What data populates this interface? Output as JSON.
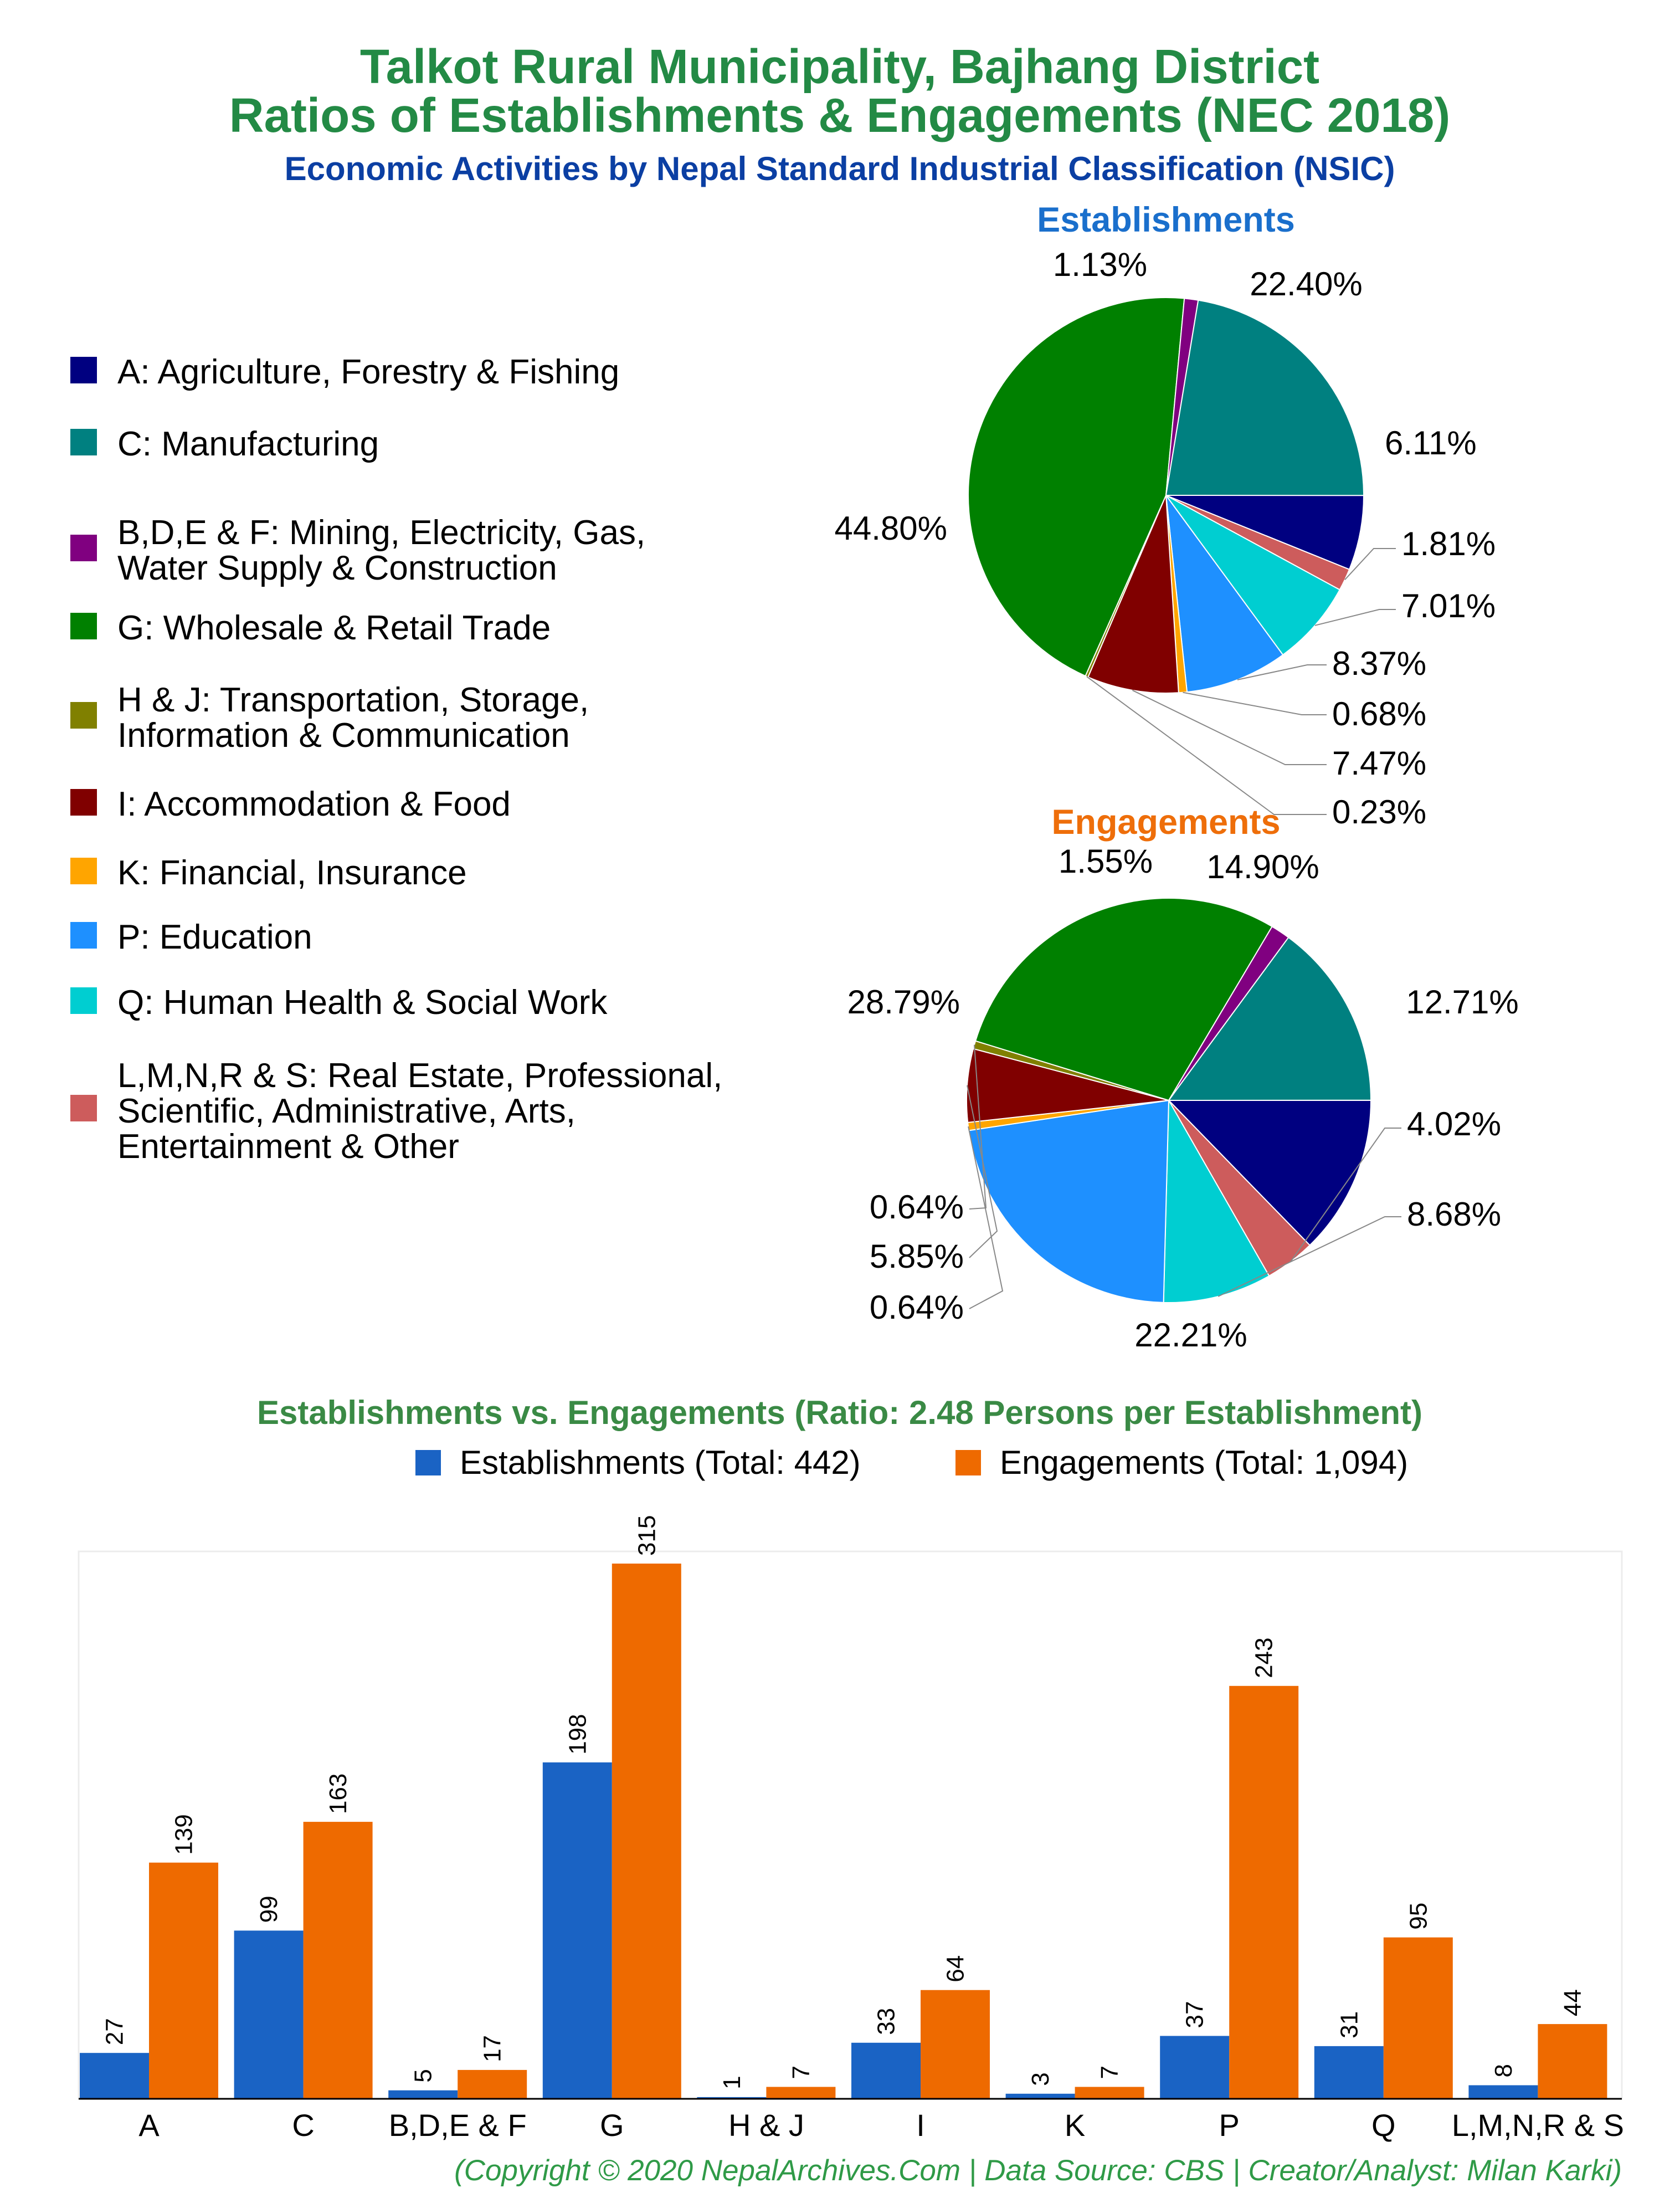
{
  "header": {
    "title_line1": "Talkot Rural Municipality, Bajhang District",
    "title_line2": "Ratios of Establishments & Engagements (NEC 2018)",
    "subtitle": "Economic Activities by Nepal Standard Industrial Classification (NSIC)"
  },
  "legend": [
    {
      "lines": [
        "A: Agriculture, Forestry & Fishing"
      ],
      "color": "#000080"
    },
    {
      "lines": [
        "C: Manufacturing"
      ],
      "color": "#008080"
    },
    {
      "lines": [
        "B,D,E & F: Mining, Electricity, Gas,",
        "Water Supply & Construction"
      ],
      "color": "#800080"
    },
    {
      "lines": [
        "G: Wholesale & Retail Trade"
      ],
      "color": "#008000"
    },
    {
      "lines": [
        "H & J: Transportation, Storage,",
        "Information & Communication"
      ],
      "color": "#808000"
    },
    {
      "lines": [
        "I: Accommodation & Food"
      ],
      "color": "#800000"
    },
    {
      "lines": [
        "K: Financial, Insurance"
      ],
      "color": "#ffa500"
    },
    {
      "lines": [
        "P: Education"
      ],
      "color": "#1e90ff"
    },
    {
      "lines": [
        "Q: Human Health & Social Work"
      ],
      "color": "#00ced1"
    },
    {
      "lines": [
        "L,M,N,R & S: Real Estate, Professional,",
        "Scientific, Administrative, Arts,",
        "Entertainment & Other"
      ],
      "color": "#cd5c5c"
    }
  ],
  "chart_data": [
    {
      "type": "pie",
      "title": "Establishments",
      "slices": [
        {
          "category": "A",
          "percent": 6.11,
          "label": "6.11%",
          "color": "#000080"
        },
        {
          "category": "L,M,N,R & S",
          "percent": 1.81,
          "label": "1.81%",
          "color": "#cd5c5c"
        },
        {
          "category": "Q",
          "percent": 7.01,
          "label": "7.01%",
          "color": "#00ced1"
        },
        {
          "category": "P",
          "percent": 8.37,
          "label": "8.37%",
          "color": "#1e90ff"
        },
        {
          "category": "K",
          "percent": 0.68,
          "label": "0.68%",
          "color": "#ffa500"
        },
        {
          "category": "I",
          "percent": 7.47,
          "label": "7.47%",
          "color": "#800000"
        },
        {
          "category": "H & J",
          "percent": 0.23,
          "label": "0.23%",
          "color": "#808000"
        },
        {
          "category": "G",
          "percent": 44.8,
          "label": "44.80%",
          "color": "#008000"
        },
        {
          "category": "B,D,E & F",
          "percent": 1.13,
          "label": "1.13%",
          "color": "#800080"
        },
        {
          "category": "C",
          "percent": 22.4,
          "label": "22.40%",
          "color": "#008080"
        }
      ]
    },
    {
      "type": "pie",
      "title": "Engagements",
      "slices": [
        {
          "category": "A",
          "percent": 12.71,
          "label": "12.71%",
          "color": "#000080"
        },
        {
          "category": "L,M,N,R & S",
          "percent": 4.02,
          "label": "4.02%",
          "color": "#cd5c5c"
        },
        {
          "category": "Q",
          "percent": 8.68,
          "label": "8.68%",
          "color": "#00ced1"
        },
        {
          "category": "P",
          "percent": 22.21,
          "label": "22.21%",
          "color": "#1e90ff"
        },
        {
          "category": "K",
          "percent": 0.64,
          "label": "0.64%",
          "color": "#ffa500"
        },
        {
          "category": "I",
          "percent": 5.85,
          "label": "5.85%",
          "color": "#800000"
        },
        {
          "category": "H & J",
          "percent": 0.64,
          "label": "0.64%",
          "color": "#808000"
        },
        {
          "category": "G",
          "percent": 28.79,
          "label": "28.79%",
          "color": "#008000"
        },
        {
          "category": "B,D,E & F",
          "percent": 1.55,
          "label": "1.55%",
          "color": "#800080"
        },
        {
          "category": "C",
          "percent": 14.9,
          "label": "14.90%",
          "color": "#008080"
        }
      ]
    },
    {
      "type": "bar",
      "title": "Establishments vs. Engagements (Ratio: 2.48 Persons per Establishment)",
      "categories": [
        "A",
        "C",
        "B,D,E & F",
        "G",
        "H & J",
        "I",
        "K",
        "P",
        "Q",
        "L,M,N,R & S"
      ],
      "series": [
        {
          "name": "Establishments (Total: 442)",
          "color": "#1a63c4",
          "values": [
            27,
            99,
            5,
            198,
            1,
            33,
            3,
            37,
            31,
            8
          ]
        },
        {
          "name": "Engagements (Total: 1,094)",
          "color": "#ee6a00",
          "values": [
            139,
            163,
            17,
            315,
            7,
            64,
            7,
            243,
            95,
            44
          ]
        }
      ],
      "ylim": [
        0,
        315
      ]
    }
  ],
  "footer": "(Copyright © 2020 NepalArchives.Com | Data Source: CBS | Creator/Analyst: Milan Karki)"
}
